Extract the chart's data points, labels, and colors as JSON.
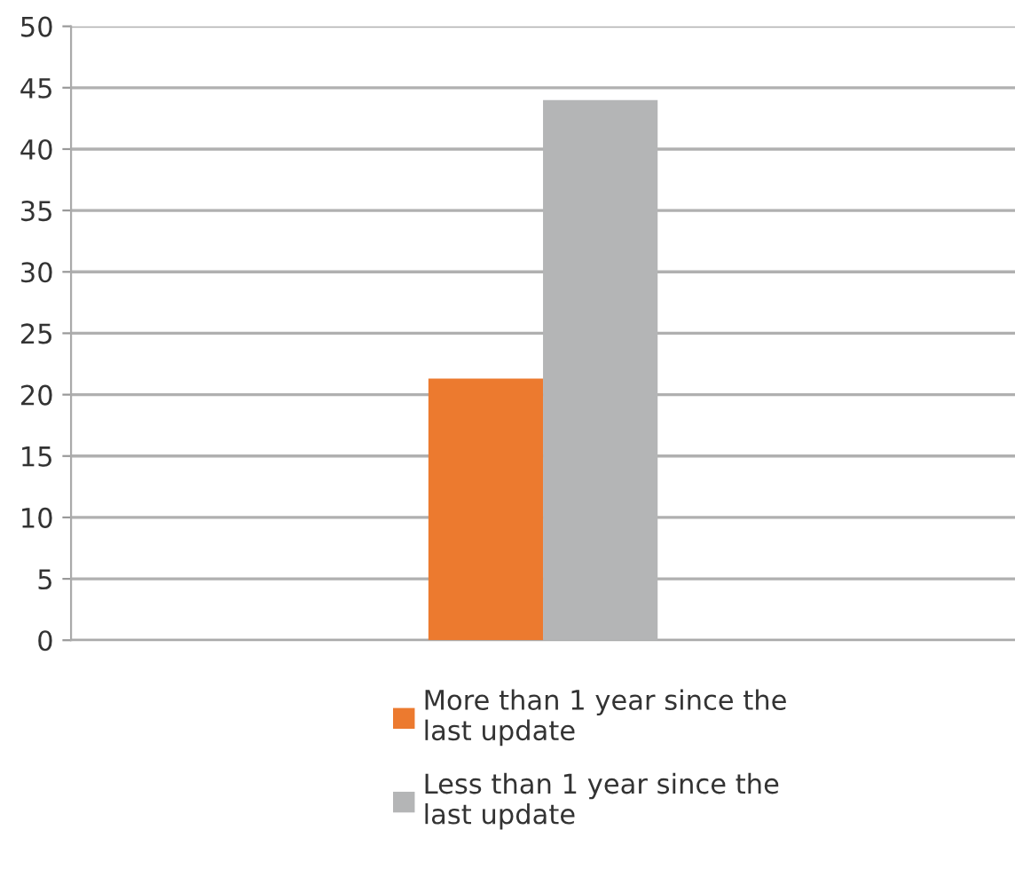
{
  "chart_data": {
    "type": "bar",
    "categories": [
      null
    ],
    "series": [
      {
        "name": "More than 1 year since the last update",
        "color": "#ec7a2f",
        "values": [
          21.3
        ]
      },
      {
        "name": "Less than 1 year since the last update",
        "color": "#b4b5b6",
        "values": [
          44.0
        ]
      }
    ],
    "ylim": [
      0,
      50
    ],
    "yticks": [
      0,
      5,
      10,
      15,
      20,
      25,
      30,
      35,
      40,
      45,
      50
    ],
    "grid": "y",
    "legend": "bottom"
  }
}
